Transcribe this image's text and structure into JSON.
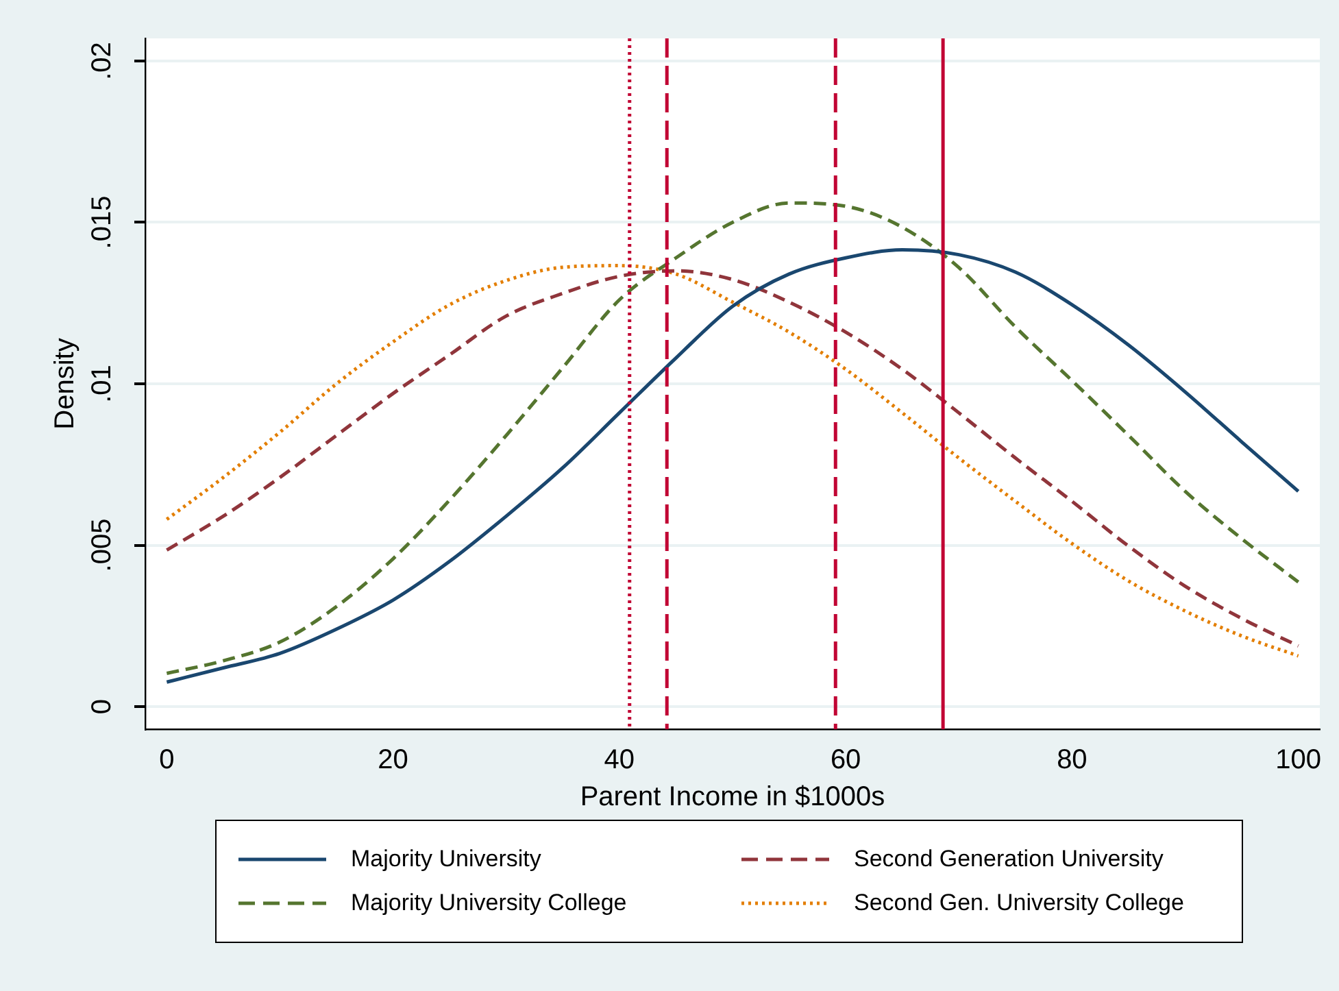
{
  "chart_data": {
    "type": "line",
    "xlabel": "Parent Income in $1000s",
    "ylabel": "Density",
    "x": [
      0,
      5,
      10,
      15,
      20,
      25,
      30,
      35,
      40,
      45,
      50,
      55,
      60,
      65,
      70,
      75,
      80,
      85,
      90,
      95,
      100
    ],
    "series": [
      {
        "name": "Majority University",
        "color": "#1a476f",
        "line_style": "solid",
        "values": [
          0.00076,
          0.0012,
          0.00165,
          0.0024,
          0.0033,
          0.0045,
          0.0059,
          0.0074,
          0.0091,
          0.0108,
          0.0124,
          0.0134,
          0.0139,
          0.01415,
          0.014,
          0.01346,
          0.01245,
          0.0112,
          0.00975,
          0.0082,
          0.00667
        ]
      },
      {
        "name": "Second Generation University",
        "color": "#90353b",
        "line_style": "dashed",
        "values": [
          0.00485,
          0.0059,
          0.0071,
          0.0084,
          0.0097,
          0.0109,
          0.0121,
          0.0128,
          0.01333,
          0.0135,
          0.01323,
          0.01253,
          0.0116,
          0.01045,
          0.0091,
          0.0077,
          0.00636,
          0.00497,
          0.00373,
          0.00273,
          0.00188
        ]
      },
      {
        "name": "Majority University College",
        "color": "#55752f",
        "line_style": "dashed",
        "values": [
          0.00103,
          0.00142,
          0.002,
          0.0031,
          0.00458,
          0.0064,
          0.0084,
          0.0105,
          0.0126,
          0.0139,
          0.015,
          0.0156,
          0.0155,
          0.01485,
          0.0136,
          0.01176,
          0.0101,
          0.0084,
          0.00667,
          0.0052,
          0.00386
        ]
      },
      {
        "name": "Second Gen. University College",
        "color": "#e37e00",
        "line_style": "dotted",
        "values": [
          0.0058,
          0.0071,
          0.0085,
          0.01,
          0.0113,
          0.01245,
          0.0132,
          0.01361,
          0.01366,
          0.0134,
          0.01253,
          0.0116,
          0.01045,
          0.0091,
          0.0077,
          0.00636,
          0.00505,
          0.00389,
          0.00296,
          0.00219,
          0.00157
        ]
      }
    ],
    "xlim": [
      -1.9,
      101.9
    ],
    "xticks": [
      0,
      20,
      40,
      60,
      80,
      100
    ],
    "ylim": [
      -0.0007,
      0.0207
    ],
    "yticks": [
      0,
      {
        "value": 0.005,
        "label": ".005"
      },
      {
        "value": 0.01,
        "label": ".01"
      },
      {
        "value": 0.015,
        "label": ".015"
      },
      {
        "value": 0.02,
        "label": ".02"
      }
    ],
    "ref_lines": [
      {
        "axis": "x",
        "value": 40.9,
        "color": "#c10534",
        "line_style": "dotted"
      },
      {
        "axis": "x",
        "value": 44.2,
        "color": "#c10534",
        "line_style": "dashed"
      },
      {
        "axis": "x",
        "value": 59.1,
        "color": "#c10534",
        "line_style": "dashed"
      },
      {
        "axis": "x",
        "value": 68.6,
        "color": "#c10534",
        "line_style": "solid"
      }
    ],
    "grid": "y",
    "legend": "bottom",
    "marker": "none"
  }
}
